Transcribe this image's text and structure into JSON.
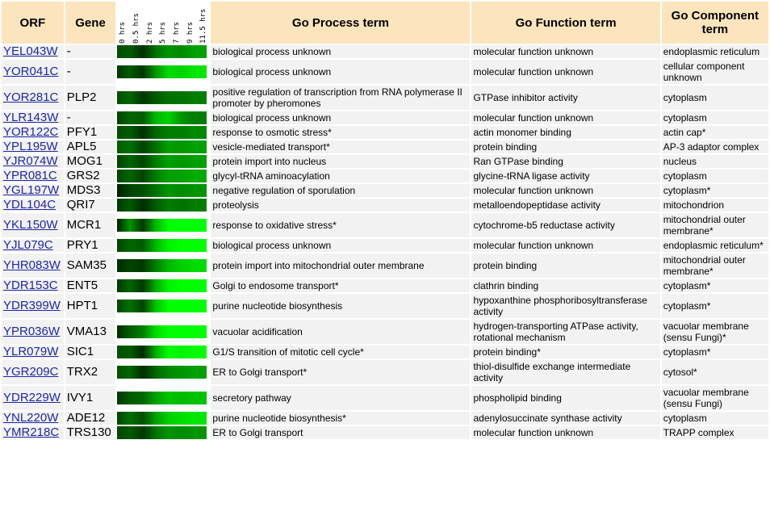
{
  "header": {
    "orf": "ORF",
    "gene": "Gene",
    "process": "Go Process term",
    "function": "Go Function term",
    "component": "Go Component term",
    "time_points": [
      "0 hrs",
      "0.5 hrs",
      "2 hrs",
      "5 hrs",
      "7 hrs",
      "9 hrs",
      "11.5 hrs"
    ]
  },
  "colors": {
    "header_bg": "#fce5bd",
    "row_bg": "#f2f2f2",
    "link": "#1b27a6"
  },
  "rows": [
    {
      "orf": "YEL043W",
      "gene": "-",
      "expr": [
        0.25,
        0.3,
        0.12,
        0.4,
        0.55,
        0.5,
        0.6
      ],
      "process": "biological process unknown",
      "function": "molecular function unknown",
      "component": "endoplasmic reticulum"
    },
    {
      "orf": "YOR041C",
      "gene": "-",
      "expr": [
        0.15,
        0.3,
        0.15,
        0.55,
        0.85,
        0.8,
        0.9
      ],
      "process": "biological process unknown",
      "function": "molecular function unknown",
      "component": "cellular component unknown"
    },
    {
      "orf": "YOR281C",
      "gene": "PLP2",
      "expr": [
        0.25,
        0.35,
        0.15,
        0.3,
        0.4,
        0.4,
        0.45
      ],
      "process": "positive regulation of transcription from RNA polymerase II promoter by pheromones",
      "function": "GTPase inhibitor activity",
      "component": "cytoplasm"
    },
    {
      "orf": "YLR143W",
      "gene": "-",
      "expr": [
        0.2,
        0.35,
        0.3,
        0.7,
        0.8,
        0.55,
        0.45
      ],
      "process": "biological process unknown",
      "function": "molecular function unknown",
      "component": "cytoplasm"
    },
    {
      "orf": "YOR122C",
      "gene": "PFY1",
      "expr": [
        0.25,
        0.3,
        0.12,
        0.35,
        0.45,
        0.45,
        0.5
      ],
      "process": "response to osmotic stress*",
      "function": "actin monomer binding",
      "component": "actin cap*"
    },
    {
      "orf": "YPL195W",
      "gene": "APL5",
      "expr": [
        0.3,
        0.4,
        0.2,
        0.4,
        0.6,
        0.55,
        0.6
      ],
      "process": "vesicle-mediated transport*",
      "function": "protein binding",
      "component": "AP-3 adaptor complex"
    },
    {
      "orf": "YJR074W",
      "gene": "MOG1",
      "expr": [
        0.2,
        0.35,
        0.2,
        0.45,
        0.6,
        0.55,
        0.6
      ],
      "process": "protein import into nucleus",
      "function": "Ran GTPase binding",
      "component": "nucleus"
    },
    {
      "orf": "YPR081C",
      "gene": "GRS2",
      "expr": [
        0.2,
        0.35,
        0.2,
        0.45,
        0.6,
        0.6,
        0.65
      ],
      "process": "glycyl-tRNA aminoacylation",
      "function": "glycine-tRNA ligase activity",
      "component": "cytoplasm"
    },
    {
      "orf": "YGL197W",
      "gene": "MDS3",
      "expr": [
        0.05,
        0.2,
        0.25,
        0.4,
        0.55,
        0.5,
        0.55
      ],
      "process": "negative regulation of sporulation",
      "function": "molecular function unknown",
      "component": "cytoplasm*"
    },
    {
      "orf": "YDL104C",
      "gene": "QRI7",
      "expr": [
        0.15,
        0.3,
        0.1,
        0.3,
        0.45,
        0.4,
        0.45
      ],
      "process": "proteolysis",
      "function": "metalloendopeptidase activity",
      "component": "mitochondrion"
    },
    {
      "orf": "YKL150W",
      "gene": "MCR1",
      "expr": [
        0.05,
        0.55,
        0.15,
        0.7,
        1.0,
        1.0,
        1.0
      ],
      "process": "response to oxidative stress*",
      "function": "cytochrome-b5 reductase activity",
      "component": "mitochondrial outer membrane*"
    },
    {
      "orf": "YJL079C",
      "gene": "PRY1",
      "expr": [
        0.2,
        0.35,
        0.3,
        0.7,
        0.95,
        1.0,
        1.0
      ],
      "process": "biological process unknown",
      "function": "molecular function unknown",
      "component": "endoplasmic reticulum*"
    },
    {
      "orf": "YHR083W",
      "gene": "SAM35",
      "expr": [
        0.1,
        0.2,
        0.15,
        0.45,
        0.7,
        0.8,
        0.85
      ],
      "process": "protein import into mitochondrial outer membrane",
      "function": "protein binding",
      "component": "mitochondrial outer membrane*"
    },
    {
      "orf": "YDR153C",
      "gene": "ENT5",
      "expr": [
        0.15,
        0.35,
        0.15,
        0.65,
        0.95,
        1.0,
        1.0
      ],
      "process": "Golgi to endosome transport*",
      "function": "clathrin binding",
      "component": "cytoplasm*"
    },
    {
      "orf": "YDR399W",
      "gene": "HPT1",
      "expr": [
        0.2,
        0.4,
        0.2,
        0.75,
        1.0,
        1.0,
        1.0
      ],
      "process": "purine nucleotide biosynthesis",
      "function": "hypoxanthine phosphoribosyltransferase activity",
      "component": "cytoplasm*"
    },
    {
      "orf": "YPR036W",
      "gene": "VMA13",
      "expr": [
        0.1,
        0.3,
        0.45,
        0.85,
        1.0,
        1.0,
        1.0
      ],
      "process": "vacuolar acidification",
      "function": "hydrogen-transporting ATPase activity, rotational mechanism",
      "component": "vacuolar membrane (sensu Fungi)*"
    },
    {
      "orf": "YLR079W",
      "gene": "SIC1",
      "expr": [
        0.25,
        0.3,
        0.1,
        0.65,
        1.0,
        0.95,
        1.0
      ],
      "process": "G1/S transition of mitotic cell cycle*",
      "function": "protein binding*",
      "component": "cytoplasm*"
    },
    {
      "orf": "YGR209C",
      "gene": "TRX2",
      "expr": [
        0.25,
        0.35,
        0.1,
        0.35,
        0.5,
        0.55,
        0.6
      ],
      "process": "ER to Golgi transport*",
      "function": "thiol-disulfide exchange intermediate activity",
      "component": "cytosol*"
    },
    {
      "orf": "YDR229W",
      "gene": "IVY1",
      "expr": [
        0.15,
        0.3,
        0.35,
        0.6,
        0.75,
        0.7,
        0.75
      ],
      "process": "secretory pathway",
      "function": "phospholipid binding",
      "component": "vacuolar membrane (sensu Fungi)"
    },
    {
      "orf": "YNL220W",
      "gene": "ADE12",
      "expr": [
        0.2,
        0.4,
        0.25,
        0.6,
        0.8,
        0.85,
        0.9
      ],
      "process": "purine nucleotide biosynthesis*",
      "function": "adenylosuccinate synthase activity",
      "component": "cytoplasm"
    },
    {
      "orf": "YMR218C",
      "gene": "TRS130",
      "expr": [
        0.2,
        0.3,
        0.15,
        0.4,
        0.55,
        0.5,
        0.55
      ],
      "process": "ER to Golgi transport",
      "function": "molecular function unknown",
      "component": "TRAPP complex"
    }
  ]
}
